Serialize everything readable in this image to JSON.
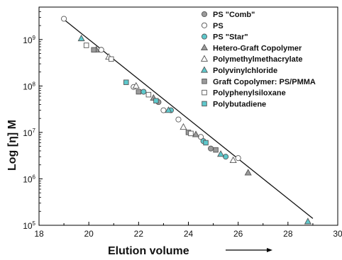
{
  "chart_data": {
    "type": "scatter",
    "xlabel": "Elution volume",
    "ylabel": "Log [η] M",
    "xlim": [
      18,
      30
    ],
    "ylim": [
      100000,
      5000000000
    ],
    "y_scale": "log",
    "x_ticks": [
      "18",
      "20",
      "22",
      "24",
      "26",
      "28",
      "30"
    ],
    "y_ticks": [
      {
        "value": 100000,
        "base": "10",
        "exp": "5"
      },
      {
        "value": 1000000,
        "base": "10",
        "exp": "6"
      },
      {
        "value": 10000000,
        "base": "10",
        "exp": "7"
      },
      {
        "value": 100000000,
        "base": "10",
        "exp": "8"
      },
      {
        "value": 1000000000,
        "base": "10",
        "exp": "9"
      }
    ],
    "legend_position": "top-right",
    "calibration_line": {
      "x": [
        19.0,
        29.0
      ],
      "y": [
        2700000000,
        140000
      ]
    },
    "series": [
      {
        "name": "PS \"Comb\"",
        "marker": "circle",
        "fill": "#9a9a9a",
        "points": [
          [
            22.8,
            45000000
          ],
          [
            24.9,
            4500000
          ]
        ]
      },
      {
        "name": "PS",
        "marker": "circle",
        "fill": "#ffffff",
        "points": [
          [
            19.0,
            2800000000
          ],
          [
            20.5,
            600000000
          ],
          [
            21.8,
            95000000
          ],
          [
            23.0,
            30000000
          ],
          [
            23.6,
            19000000
          ],
          [
            24.5,
            8000000
          ],
          [
            26.0,
            2800000
          ]
        ]
      },
      {
        "name": "PS \"Star\"",
        "marker": "circle",
        "fill": "#5ec8cc",
        "points": [
          [
            22.2,
            75000000
          ],
          [
            23.3,
            30000000
          ],
          [
            24.6,
            6500000
          ],
          [
            25.5,
            3000000
          ]
        ]
      },
      {
        "name": "Hetero-Graft Copolymer",
        "marker": "triangle",
        "fill": "#9a9a9a",
        "points": [
          [
            20.3,
            600000000
          ],
          [
            22.6,
            55000000
          ],
          [
            24.3,
            9000000
          ],
          [
            26.4,
            1350000
          ]
        ]
      },
      {
        "name": "Polymethylmethacrylate",
        "marker": "triangle",
        "fill": "#ffffff",
        "points": [
          [
            20.8,
            420000000
          ],
          [
            21.9,
            100000000
          ],
          [
            23.8,
            13000000
          ],
          [
            25.8,
            2500000
          ]
        ]
      },
      {
        "name": "Polyvinylchloride",
        "marker": "triangle",
        "fill": "#5ec8cc",
        "points": [
          [
            19.7,
            1050000000
          ],
          [
            23.2,
            30000000
          ],
          [
            25.3,
            3400000
          ],
          [
            28.8,
            120000
          ]
        ]
      },
      {
        "name": "Graft Copolymer: PS/PMMA",
        "marker": "square",
        "fill": "#9a9a9a",
        "points": [
          [
            20.2,
            600000000
          ],
          [
            22.0,
            75000000
          ],
          [
            24.0,
            10000000
          ],
          [
            25.1,
            4200000
          ]
        ]
      },
      {
        "name": "Polyphenylsiloxane",
        "marker": "square",
        "fill": "#ffffff",
        "points": [
          [
            19.9,
            750000000
          ],
          [
            20.9,
            380000000
          ],
          [
            22.4,
            65000000
          ],
          [
            24.1,
            9500000
          ]
        ]
      },
      {
        "name": "Polybutadiene",
        "marker": "square",
        "fill": "#5ec8cc",
        "points": [
          [
            21.5,
            120000000
          ],
          [
            22.7,
            48000000
          ],
          [
            24.7,
            6000000
          ]
        ]
      }
    ]
  }
}
